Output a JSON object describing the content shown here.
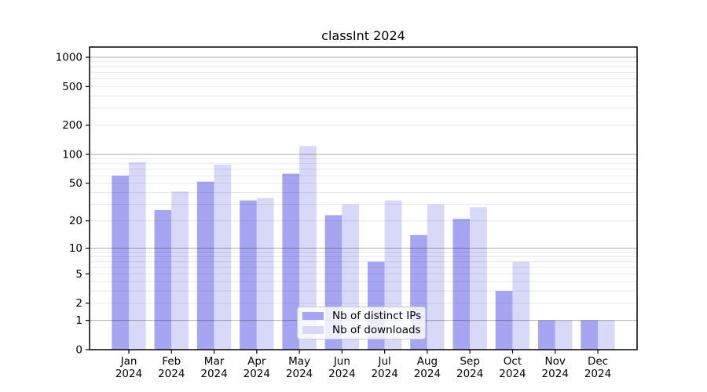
{
  "chart_data": {
    "type": "bar",
    "title": "classInt 2024",
    "categories": [
      "Jan 2024",
      "Feb 2024",
      "Mar 2024",
      "Apr 2024",
      "May 2024",
      "Jun 2024",
      "Jul 2024",
      "Aug 2024",
      "Sep 2024",
      "Oct 2024",
      "Nov 2024",
      "Dec 2024"
    ],
    "series": [
      {
        "name": "Nb of distinct IPs",
        "color": "#a5a5f1",
        "values": [
          60,
          26,
          52,
          33,
          63,
          23,
          7,
          14,
          21,
          3,
          1,
          1
        ]
      },
      {
        "name": "Nb of downloads",
        "color": "#d8d8f8",
        "values": [
          83,
          41,
          78,
          35,
          122,
          30,
          33,
          30,
          28,
          7,
          1,
          1
        ]
      }
    ],
    "xlabel": "",
    "ylabel": "",
    "y_scale": "log1p",
    "y_ticks": [
      0,
      1,
      2,
      5,
      10,
      20,
      50,
      100,
      200,
      500,
      1000
    ],
    "y_minor_gridlines": [
      3,
      4,
      6,
      7,
      8,
      9,
      30,
      40,
      60,
      70,
      80,
      90,
      300,
      400,
      600,
      700,
      800,
      900
    ],
    "ylim": [
      0,
      1273
    ],
    "grid": true,
    "legend_position": "lower center",
    "colors": {
      "background": "#ffffff",
      "axis_frame": "#000000",
      "grid_major": "rgba(0,0,0,0.32)",
      "grid_minor": "rgba(0,0,0,0.09)",
      "tick_label": "#000000"
    }
  }
}
